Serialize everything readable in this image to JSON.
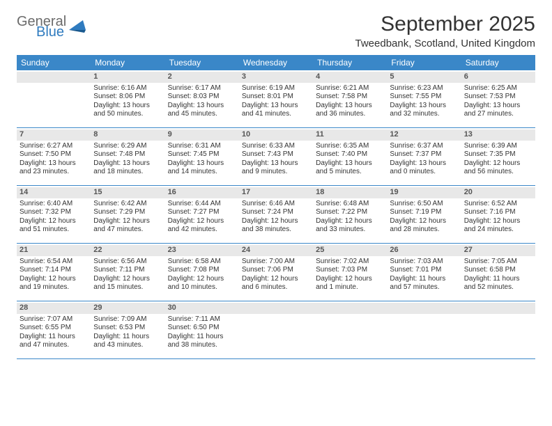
{
  "logo": {
    "word1": "General",
    "word2": "Blue",
    "color_gray": "#6b6b6b",
    "color_blue": "#2f7bbf"
  },
  "title": "September 2025",
  "location": "Tweedbank, Scotland, United Kingdom",
  "colors": {
    "header_bg": "#3a87c8",
    "header_text": "#ffffff",
    "daynum_bg": "#e8e8e8",
    "border": "#3a87c8",
    "text": "#333333"
  },
  "day_names": [
    "Sunday",
    "Monday",
    "Tuesday",
    "Wednesday",
    "Thursday",
    "Friday",
    "Saturday"
  ],
  "weeks": [
    [
      {
        "num": "",
        "lines": []
      },
      {
        "num": "1",
        "lines": [
          "Sunrise: 6:16 AM",
          "Sunset: 8:06 PM",
          "Daylight: 13 hours",
          "and 50 minutes."
        ]
      },
      {
        "num": "2",
        "lines": [
          "Sunrise: 6:17 AM",
          "Sunset: 8:03 PM",
          "Daylight: 13 hours",
          "and 45 minutes."
        ]
      },
      {
        "num": "3",
        "lines": [
          "Sunrise: 6:19 AM",
          "Sunset: 8:01 PM",
          "Daylight: 13 hours",
          "and 41 minutes."
        ]
      },
      {
        "num": "4",
        "lines": [
          "Sunrise: 6:21 AM",
          "Sunset: 7:58 PM",
          "Daylight: 13 hours",
          "and 36 minutes."
        ]
      },
      {
        "num": "5",
        "lines": [
          "Sunrise: 6:23 AM",
          "Sunset: 7:55 PM",
          "Daylight: 13 hours",
          "and 32 minutes."
        ]
      },
      {
        "num": "6",
        "lines": [
          "Sunrise: 6:25 AM",
          "Sunset: 7:53 PM",
          "Daylight: 13 hours",
          "and 27 minutes."
        ]
      }
    ],
    [
      {
        "num": "7",
        "lines": [
          "Sunrise: 6:27 AM",
          "Sunset: 7:50 PM",
          "Daylight: 13 hours",
          "and 23 minutes."
        ]
      },
      {
        "num": "8",
        "lines": [
          "Sunrise: 6:29 AM",
          "Sunset: 7:48 PM",
          "Daylight: 13 hours",
          "and 18 minutes."
        ]
      },
      {
        "num": "9",
        "lines": [
          "Sunrise: 6:31 AM",
          "Sunset: 7:45 PM",
          "Daylight: 13 hours",
          "and 14 minutes."
        ]
      },
      {
        "num": "10",
        "lines": [
          "Sunrise: 6:33 AM",
          "Sunset: 7:43 PM",
          "Daylight: 13 hours",
          "and 9 minutes."
        ]
      },
      {
        "num": "11",
        "lines": [
          "Sunrise: 6:35 AM",
          "Sunset: 7:40 PM",
          "Daylight: 13 hours",
          "and 5 minutes."
        ]
      },
      {
        "num": "12",
        "lines": [
          "Sunrise: 6:37 AM",
          "Sunset: 7:37 PM",
          "Daylight: 13 hours",
          "and 0 minutes."
        ]
      },
      {
        "num": "13",
        "lines": [
          "Sunrise: 6:39 AM",
          "Sunset: 7:35 PM",
          "Daylight: 12 hours",
          "and 56 minutes."
        ]
      }
    ],
    [
      {
        "num": "14",
        "lines": [
          "Sunrise: 6:40 AM",
          "Sunset: 7:32 PM",
          "Daylight: 12 hours",
          "and 51 minutes."
        ]
      },
      {
        "num": "15",
        "lines": [
          "Sunrise: 6:42 AM",
          "Sunset: 7:29 PM",
          "Daylight: 12 hours",
          "and 47 minutes."
        ]
      },
      {
        "num": "16",
        "lines": [
          "Sunrise: 6:44 AM",
          "Sunset: 7:27 PM",
          "Daylight: 12 hours",
          "and 42 minutes."
        ]
      },
      {
        "num": "17",
        "lines": [
          "Sunrise: 6:46 AM",
          "Sunset: 7:24 PM",
          "Daylight: 12 hours",
          "and 38 minutes."
        ]
      },
      {
        "num": "18",
        "lines": [
          "Sunrise: 6:48 AM",
          "Sunset: 7:22 PM",
          "Daylight: 12 hours",
          "and 33 minutes."
        ]
      },
      {
        "num": "19",
        "lines": [
          "Sunrise: 6:50 AM",
          "Sunset: 7:19 PM",
          "Daylight: 12 hours",
          "and 28 minutes."
        ]
      },
      {
        "num": "20",
        "lines": [
          "Sunrise: 6:52 AM",
          "Sunset: 7:16 PM",
          "Daylight: 12 hours",
          "and 24 minutes."
        ]
      }
    ],
    [
      {
        "num": "21",
        "lines": [
          "Sunrise: 6:54 AM",
          "Sunset: 7:14 PM",
          "Daylight: 12 hours",
          "and 19 minutes."
        ]
      },
      {
        "num": "22",
        "lines": [
          "Sunrise: 6:56 AM",
          "Sunset: 7:11 PM",
          "Daylight: 12 hours",
          "and 15 minutes."
        ]
      },
      {
        "num": "23",
        "lines": [
          "Sunrise: 6:58 AM",
          "Sunset: 7:08 PM",
          "Daylight: 12 hours",
          "and 10 minutes."
        ]
      },
      {
        "num": "24",
        "lines": [
          "Sunrise: 7:00 AM",
          "Sunset: 7:06 PM",
          "Daylight: 12 hours",
          "and 6 minutes."
        ]
      },
      {
        "num": "25",
        "lines": [
          "Sunrise: 7:02 AM",
          "Sunset: 7:03 PM",
          "Daylight: 12 hours",
          "and 1 minute."
        ]
      },
      {
        "num": "26",
        "lines": [
          "Sunrise: 7:03 AM",
          "Sunset: 7:01 PM",
          "Daylight: 11 hours",
          "and 57 minutes."
        ]
      },
      {
        "num": "27",
        "lines": [
          "Sunrise: 7:05 AM",
          "Sunset: 6:58 PM",
          "Daylight: 11 hours",
          "and 52 minutes."
        ]
      }
    ],
    [
      {
        "num": "28",
        "lines": [
          "Sunrise: 7:07 AM",
          "Sunset: 6:55 PM",
          "Daylight: 11 hours",
          "and 47 minutes."
        ]
      },
      {
        "num": "29",
        "lines": [
          "Sunrise: 7:09 AM",
          "Sunset: 6:53 PM",
          "Daylight: 11 hours",
          "and 43 minutes."
        ]
      },
      {
        "num": "30",
        "lines": [
          "Sunrise: 7:11 AM",
          "Sunset: 6:50 PM",
          "Daylight: 11 hours",
          "and 38 minutes."
        ]
      },
      {
        "num": "",
        "lines": []
      },
      {
        "num": "",
        "lines": []
      },
      {
        "num": "",
        "lines": []
      },
      {
        "num": "",
        "lines": []
      }
    ]
  ]
}
